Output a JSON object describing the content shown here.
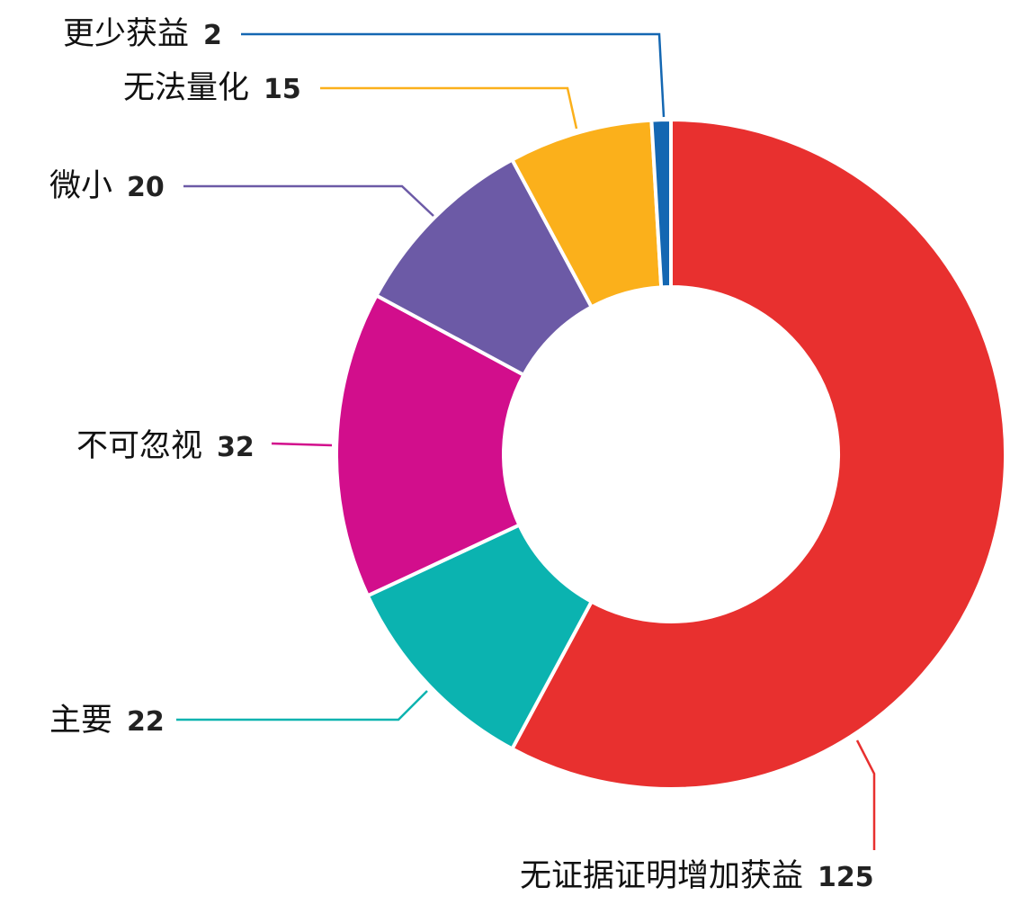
{
  "chart_data": {
    "type": "pie",
    "variant": "donut",
    "title": "",
    "legend": "none",
    "slices": [
      {
        "label": "无证据证明增加获益",
        "value": 125,
        "color": "#E8302F"
      },
      {
        "label": "主要",
        "value": 22,
        "color": "#0BB3B0"
      },
      {
        "label": "不可忽视",
        "value": 32,
        "color": "#D20E8C"
      },
      {
        "label": "微小",
        "value": 20,
        "color": "#6C5AA6"
      },
      {
        "label": "无法量化",
        "value": 15,
        "color": "#FBB01B"
      },
      {
        "label": "更少获益",
        "value": 2,
        "color": "#1467B2"
      }
    ]
  }
}
